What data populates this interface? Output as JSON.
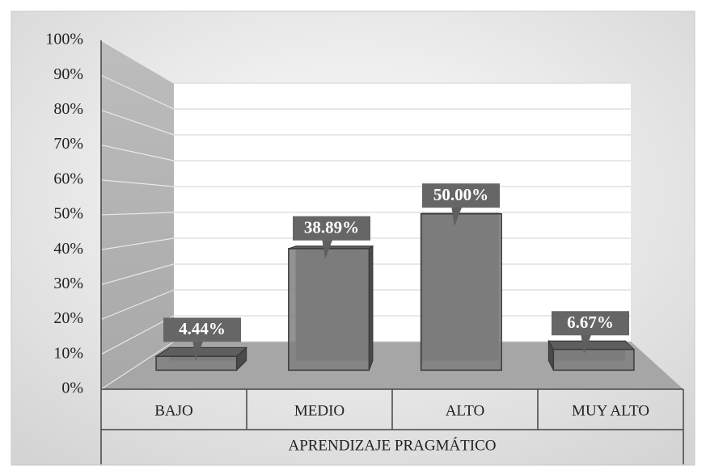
{
  "chart_data": {
    "type": "bar3d",
    "categories": [
      "BAJO",
      "MEDIO",
      "ALTO",
      "MUY ALTO"
    ],
    "values": [
      4.44,
      38.89,
      50.0,
      6.67
    ],
    "value_labels": [
      "4.44%",
      "38.89%",
      "50.00%",
      "6.67%"
    ],
    "color": "#7f7f7f",
    "xlabel": "APRENDIZAJE PRAGMÁTICO",
    "ylim": [
      0,
      100
    ],
    "yticks": [
      {
        "value": 0,
        "label": "0%"
      },
      {
        "value": 10,
        "label": "10%"
      },
      {
        "value": 20,
        "label": "20%"
      },
      {
        "value": 30,
        "label": "30%"
      },
      {
        "value": 40,
        "label": "40%"
      },
      {
        "value": 50,
        "label": "50%"
      },
      {
        "value": 60,
        "label": "60%"
      },
      {
        "value": 70,
        "label": "70%"
      },
      {
        "value": 80,
        "label": "80%"
      },
      {
        "value": 90,
        "label": "90%"
      },
      {
        "value": 100,
        "label": "100%"
      }
    ],
    "grid": true
  }
}
